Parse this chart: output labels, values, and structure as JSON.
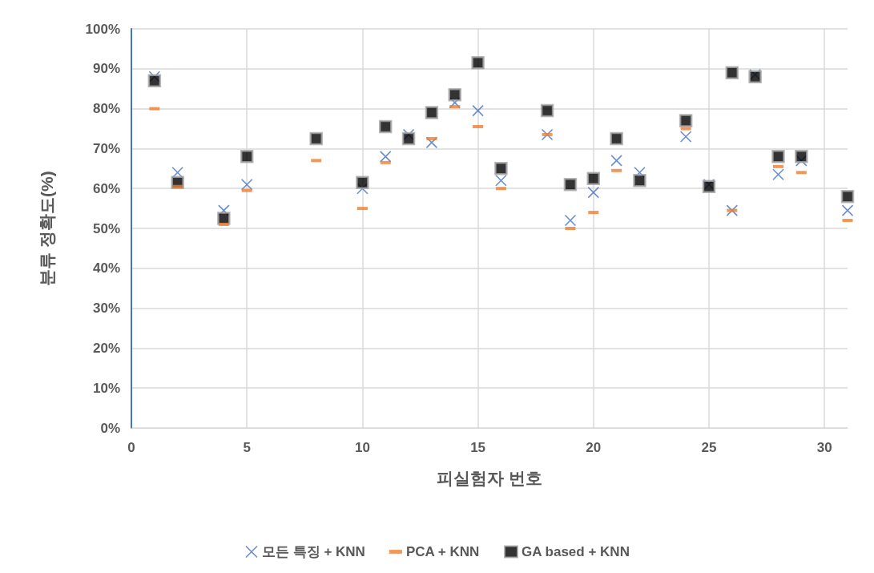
{
  "chart_data": {
    "type": "scatter",
    "xlabel": "피실험자 번호",
    "ylabel": "분류 정확도(%)",
    "x": [
      1,
      2,
      4,
      5,
      8,
      10,
      11,
      12,
      13,
      14,
      15,
      16,
      18,
      19,
      20,
      21,
      22,
      24,
      25,
      26,
      27,
      28,
      29,
      31
    ],
    "series": [
      {
        "name": "모든 특징 + KNN",
        "color": "#4472c4",
        "marker": "cross",
        "values": [
          88,
          64,
          54.5,
          61,
          null,
          60,
          68,
          73.5,
          71.5,
          81.5,
          79.5,
          62,
          73.5,
          52,
          59,
          67,
          64,
          73,
          61,
          54.5,
          88.5,
          63.5,
          67,
          54.5
        ]
      },
      {
        "name": "PCA + KNN",
        "color": "#ed7d31",
        "values": [
          80,
          60.5,
          51,
          59.5,
          67,
          55,
          66.5,
          null,
          72.5,
          80.5,
          75.5,
          60,
          73.5,
          50,
          54,
          64.5,
          null,
          75,
          null,
          54.5,
          null,
          65.5,
          64,
          52
        ]
      },
      {
        "name": "GA based + KNN",
        "color": "#000000",
        "marker": "square",
        "values": [
          87,
          61.5,
          52.5,
          68,
          72.5,
          61.5,
          75.5,
          72.5,
          79,
          83.5,
          91.5,
          65,
          79.5,
          61,
          62.5,
          72.5,
          62,
          77,
          60.5,
          89,
          88,
          68,
          68,
          58
        ]
      }
    ],
    "xlim": [
      0,
      31
    ],
    "xticks": [
      0,
      5,
      10,
      15,
      20,
      25,
      30
    ],
    "ylim": [
      0,
      100
    ],
    "yticks": [
      {
        "value": 0,
        "label": "0%"
      },
      {
        "value": 10,
        "label": "10%"
      },
      {
        "value": 20,
        "label": "20%"
      },
      {
        "value": 30,
        "label": "30%"
      },
      {
        "value": 40,
        "label": "40%"
      },
      {
        "value": 50,
        "label": "50%"
      },
      {
        "value": 60,
        "label": "60%"
      },
      {
        "value": 70,
        "label": "70%"
      },
      {
        "value": 80,
        "label": "80%"
      },
      {
        "value": 90,
        "label": "90%"
      },
      {
        "value": 100,
        "label": "100%"
      }
    ],
    "grid": true,
    "legend": "bottom"
  }
}
